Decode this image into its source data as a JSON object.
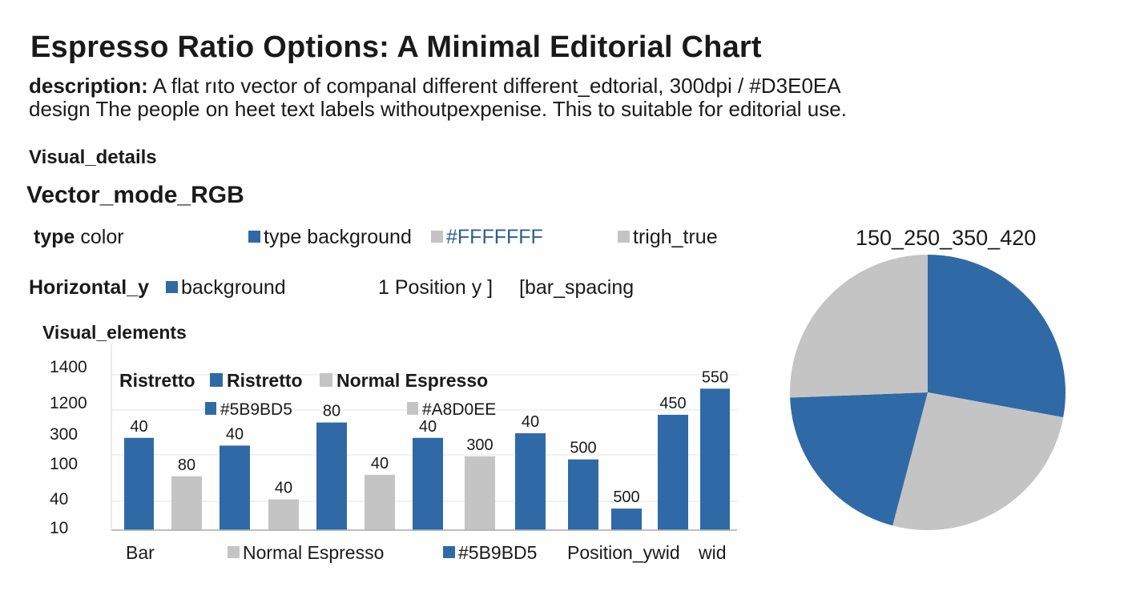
{
  "header": {
    "title": "Espresso Ratio Options: A Minimal Editorial Chart",
    "description_label": "description:",
    "description_line1": "A flat rıto vector of companal different different_edtorial, 300dpi / #D3E0EA",
    "description_line2": "design The people on heet text labels withoutpexpenise. This to suitable for editorial use."
  },
  "details": {
    "visual_details": "Visual_details",
    "vector_mode": "Vector_mode_RGB",
    "type_label": "type",
    "type_value": "color",
    "type_background": "type background",
    "hex_white": "#FFFFFFF",
    "trigh_true": "trigh_true",
    "horizontal_label": "Horizontal_y",
    "background": "background",
    "position_text": "1  Position y ]",
    "bar_spacing": "[bar_spacing",
    "visual_elements": "Visual_elements"
  },
  "colors": {
    "blue": "#2f6aa6",
    "gray": "#c4c4c4"
  },
  "chart_data": [
    {
      "type": "bar",
      "y_ticks": [
        "1400",
        "1200",
        "300",
        "100",
        "40",
        "10"
      ],
      "legend": {
        "plain_label": "Ristretto",
        "series_a": "Ristretto",
        "series_b": "Normal Espresso",
        "hex_a": "#5B9BD5",
        "hex_b": "#A8D0EE"
      },
      "bars": [
        {
          "label": "40",
          "color": "blue",
          "level": 0.6
        },
        {
          "label": "80",
          "color": "gray",
          "level": 0.35
        },
        {
          "label": "40",
          "color": "blue",
          "level": 0.55
        },
        {
          "label": "40",
          "color": "gray",
          "level": 0.2
        },
        {
          "label": "80",
          "color": "blue",
          "level": 0.7
        },
        {
          "label": "40",
          "color": "gray",
          "level": 0.36
        },
        {
          "label": "40",
          "color": "blue",
          "level": 0.6
        },
        {
          "label": "300",
          "color": "gray",
          "level": 0.48
        },
        {
          "label": "40",
          "color": "blue",
          "level": 0.63
        },
        {
          "label": "500",
          "color": "blue",
          "level": 0.46
        },
        {
          "label": "500",
          "color": "blue",
          "level": 0.14
        },
        {
          "label": "450",
          "color": "blue",
          "level": 0.75
        },
        {
          "label": "550",
          "color": "blue",
          "level": 0.92
        }
      ],
      "bottom_labels": {
        "bar": "Bar",
        "normal_espresso": "Normal Espresso",
        "hex": "#5B9BD5",
        "position": "Position_ywid",
        "wid": "wid"
      }
    },
    {
      "type": "pie",
      "title": "150_250_350_420",
      "slices": [
        {
          "color": "blue",
          "share": 0.279
        },
        {
          "color": "gray",
          "share": 0.262
        },
        {
          "color": "blue",
          "share": 0.203
        },
        {
          "color": "gray",
          "share": 0.256
        }
      ]
    }
  ]
}
